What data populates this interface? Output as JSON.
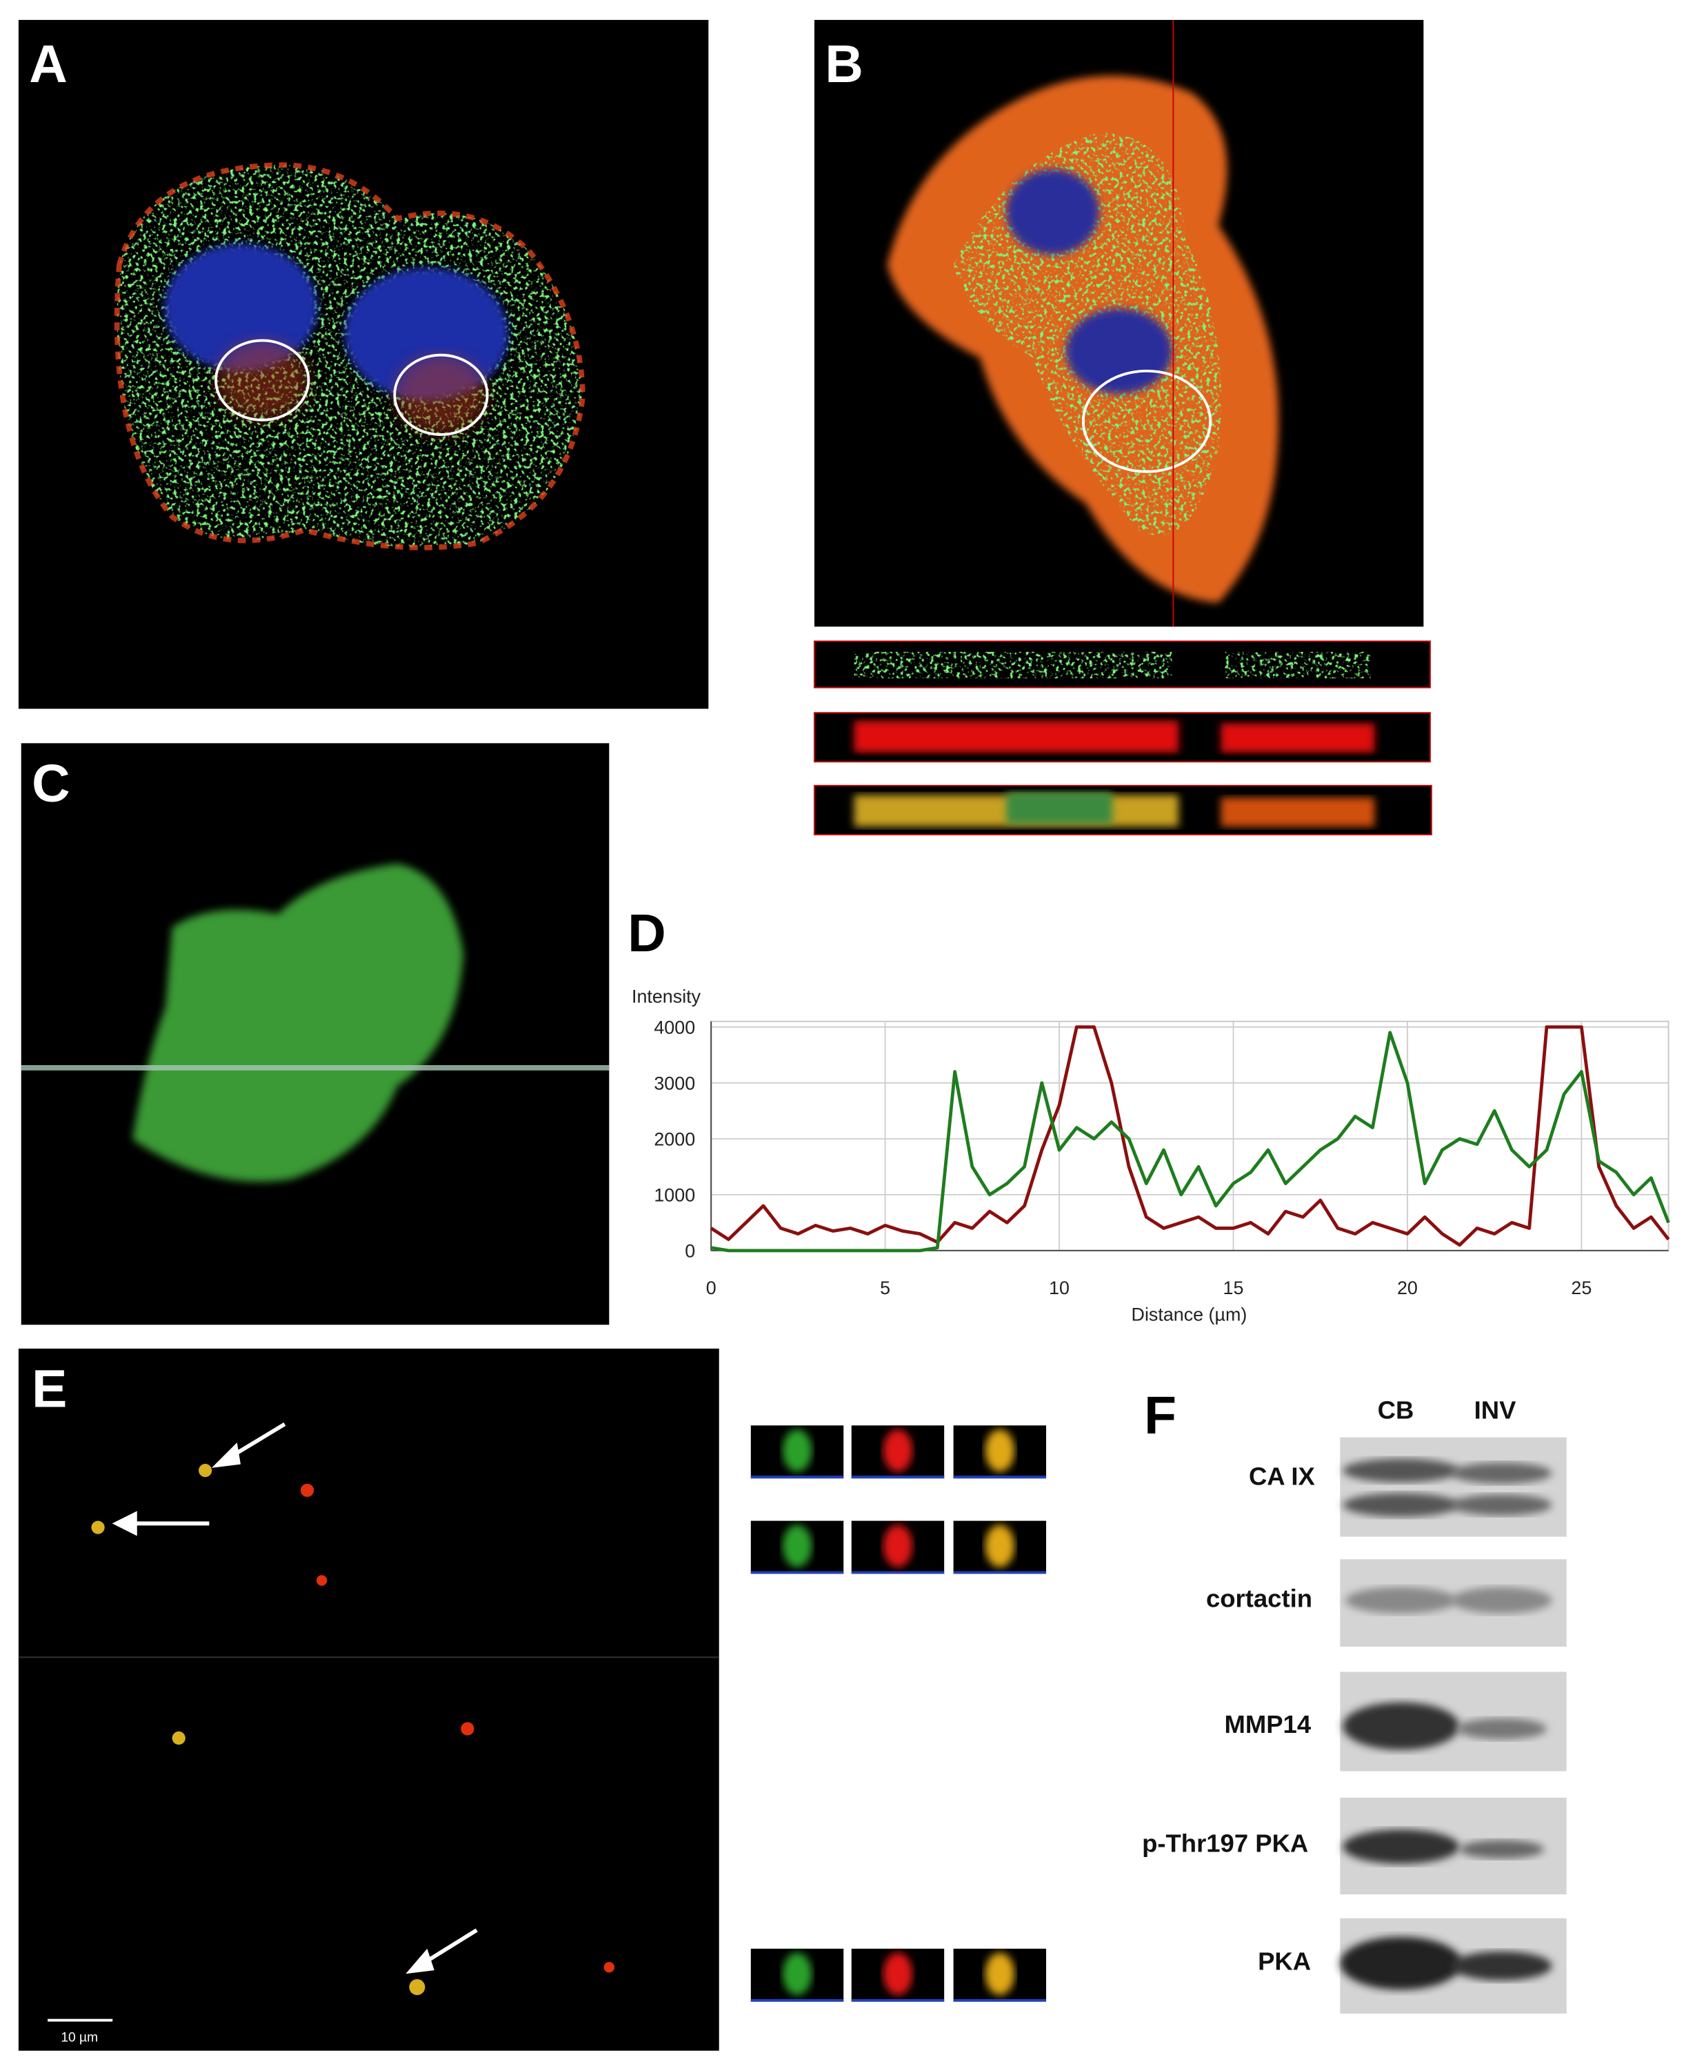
{
  "figure": {
    "panel_labels": [
      "A",
      "B",
      "C",
      "D",
      "E",
      "F"
    ],
    "scale_bar": "10 µm",
    "blot": {
      "lanes": [
        "CB",
        "INV"
      ],
      "proteins": [
        "CA IX",
        "cortactin",
        "MMP14",
        "p-Thr197 PKA",
        "PKA"
      ]
    }
  },
  "chart_data": {
    "type": "line",
    "y_label": "Intensity",
    "x_label": "Distance (µm)",
    "x": [
      0,
      0.5,
      1,
      1.5,
      2,
      2.5,
      3,
      3.5,
      4,
      4.5,
      5,
      5.5,
      6,
      6.5,
      7,
      7.5,
      8,
      8.5,
      9,
      9.5,
      10,
      10.5,
      11,
      11.5,
      12,
      12.5,
      13,
      13.5,
      14,
      14.5,
      15,
      15.5,
      16,
      16.5,
      17,
      17.5,
      18,
      18.5,
      19,
      19.5,
      20,
      20.5,
      21,
      21.5,
      22,
      22.5,
      23,
      23.5,
      24,
      24.5,
      25,
      25.5,
      26,
      26.5,
      27,
      27.5
    ],
    "series": [
      {
        "color": "#8b0f0f",
        "values": [
          400,
          200,
          500,
          800,
          400,
          300,
          450,
          350,
          400,
          300,
          450,
          350,
          300,
          150,
          500,
          400,
          700,
          500,
          800,
          1800,
          2600,
          4000,
          4000,
          3000,
          1500,
          600,
          400,
          500,
          600,
          400,
          400,
          500,
          300,
          700,
          600,
          900,
          400,
          300,
          500,
          400,
          300,
          600,
          300,
          100,
          400,
          300,
          500,
          400,
          4000,
          4000,
          4000,
          1500,
          800,
          400,
          600,
          200
        ]
      },
      {
        "color": "#1e7d1e",
        "values": [
          50,
          0,
          0,
          0,
          0,
          0,
          0,
          0,
          0,
          0,
          0,
          0,
          0,
          50,
          3200,
          1500,
          1000,
          1200,
          1500,
          3000,
          1800,
          2200,
          2000,
          2300,
          2000,
          1200,
          1800,
          1000,
          1500,
          800,
          1200,
          1400,
          1800,
          1200,
          1500,
          1800,
          2000,
          2400,
          2200,
          3900,
          3000,
          1200,
          1800,
          2000,
          1900,
          2500,
          1800,
          1500,
          1800,
          2800,
          3200,
          1600,
          1400,
          1000,
          1300,
          500
        ]
      }
    ],
    "xlim": [
      0,
      27.5
    ],
    "ylim": [
      0,
      4100
    ],
    "xticks": [
      0,
      5,
      10,
      15,
      20,
      25
    ],
    "yticks": [
      0,
      1000,
      2000,
      3000,
      4000
    ],
    "grid": true
  }
}
